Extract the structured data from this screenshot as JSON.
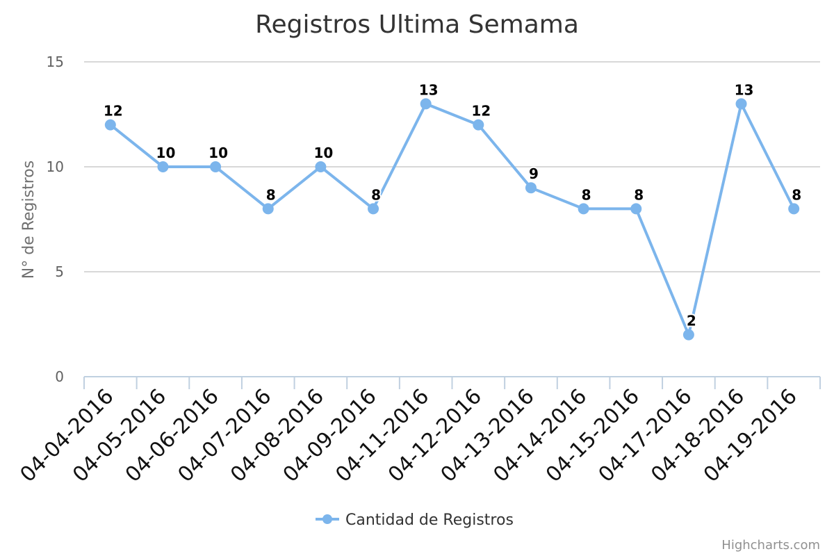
{
  "chart_data": {
    "type": "line",
    "title": "Registros Ultima Semama",
    "xlabel": "",
    "ylabel": "N° de Registros",
    "categories": [
      "04-04-2016",
      "04-05-2016",
      "04-06-2016",
      "04-07-2016",
      "04-08-2016",
      "04-09-2016",
      "04-11-2016",
      "04-12-2016",
      "04-13-2016",
      "04-14-2016",
      "04-15-2016",
      "04-17-2016",
      "04-18-2016",
      "04-19-2016"
    ],
    "series": [
      {
        "name": "Cantidad de Registros",
        "values": [
          12,
          10,
          10,
          8,
          10,
          8,
          13,
          12,
          9,
          8,
          8,
          2,
          13,
          8
        ],
        "color": "#7cb5ec"
      }
    ],
    "ylim": [
      0,
      15
    ],
    "yticks": [
      "0",
      "5",
      "10",
      "15"
    ],
    "grid": true,
    "legend_position": "bottom-center",
    "data_labels": true
  },
  "credits": "Highcharts.com",
  "colors": {
    "series": "#7cb5ec",
    "grid": "#d8d8d8",
    "axis": "#c0d0e0"
  }
}
